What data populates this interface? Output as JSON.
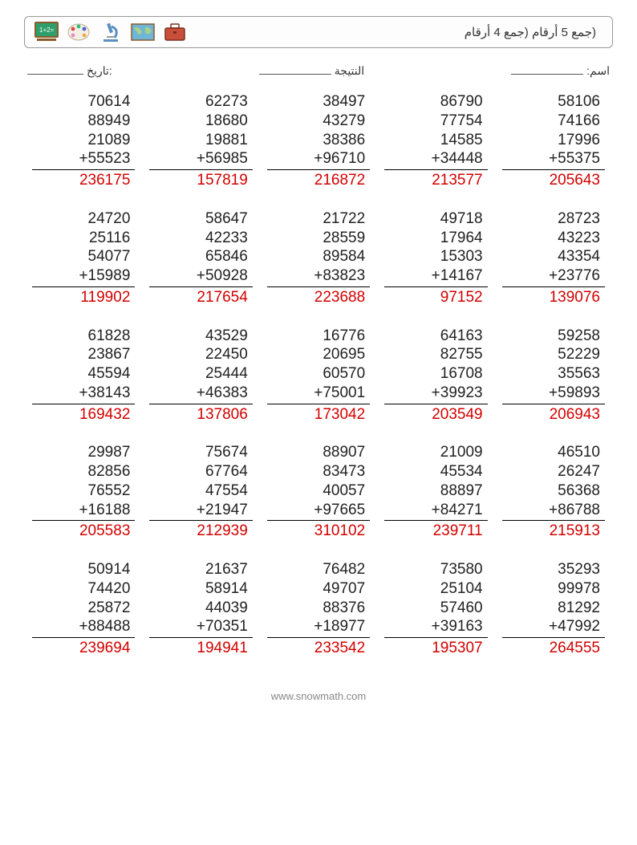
{
  "title": "(جمع 5 أرقام (جمع 4 أرقام",
  "meta": {
    "name_label": "اسم:",
    "score_label": "النتيجة",
    "date_label": ":تاريخ"
  },
  "text_color": "#222222",
  "answer_color": "#d40000",
  "background_color": "#ffffff",
  "font_size": 19,
  "columns": 5,
  "rows": 5,
  "icons": [
    {
      "name": "chalkboard-icon",
      "bg": "#2e9e6b",
      "accent": "#8b5a2b"
    },
    {
      "name": "paint-palette-icon",
      "bg": "#ffffff",
      "accent": "#c94f7c"
    },
    {
      "name": "microscope-icon",
      "bg": "#ffffff",
      "accent": "#5a8fbf"
    },
    {
      "name": "world-map-icon",
      "bg": "#6fb6d6",
      "accent": "#a7d08c"
    },
    {
      "name": "briefcase-icon",
      "bg": "#c94f3a",
      "accent": "#7a2e1e"
    }
  ],
  "meta_line_widths": {
    "name": 90,
    "score": 90,
    "date": 70
  },
  "problems": [
    [
      {
        "addends": [
          70614,
          88949,
          21089,
          55523
        ],
        "answer": 236175
      },
      {
        "addends": [
          62273,
          18680,
          19881,
          56985
        ],
        "answer": 157819
      },
      {
        "addends": [
          38497,
          43279,
          38386,
          96710
        ],
        "answer": 216872
      },
      {
        "addends": [
          86790,
          77754,
          14585,
          34448
        ],
        "answer": 213577
      },
      {
        "addends": [
          58106,
          74166,
          17996,
          55375
        ],
        "answer": 205643
      }
    ],
    [
      {
        "addends": [
          24720,
          25116,
          54077,
          15989
        ],
        "answer": 119902
      },
      {
        "addends": [
          58647,
          42233,
          65846,
          50928
        ],
        "answer": 217654
      },
      {
        "addends": [
          21722,
          28559,
          89584,
          83823
        ],
        "answer": 223688
      },
      {
        "addends": [
          49718,
          17964,
          15303,
          14167
        ],
        "answer": 97152
      },
      {
        "addends": [
          28723,
          43223,
          43354,
          23776
        ],
        "answer": 139076
      }
    ],
    [
      {
        "addends": [
          61828,
          23867,
          45594,
          38143
        ],
        "answer": 169432
      },
      {
        "addends": [
          43529,
          22450,
          25444,
          46383
        ],
        "answer": 137806
      },
      {
        "addends": [
          16776,
          20695,
          60570,
          75001
        ],
        "answer": 173042
      },
      {
        "addends": [
          64163,
          82755,
          16708,
          39923
        ],
        "answer": 203549
      },
      {
        "addends": [
          59258,
          52229,
          35563,
          59893
        ],
        "answer": 206943
      }
    ],
    [
      {
        "addends": [
          29987,
          82856,
          76552,
          16188
        ],
        "answer": 205583
      },
      {
        "addends": [
          75674,
          67764,
          47554,
          21947
        ],
        "answer": 212939
      },
      {
        "addends": [
          88907,
          83473,
          40057,
          97665
        ],
        "answer": 310102
      },
      {
        "addends": [
          21009,
          45534,
          88897,
          84271
        ],
        "answer": 239711
      },
      {
        "addends": [
          46510,
          26247,
          56368,
          86788
        ],
        "answer": 215913
      }
    ],
    [
      {
        "addends": [
          50914,
          74420,
          25872,
          88488
        ],
        "answer": 239694
      },
      {
        "addends": [
          21637,
          58914,
          44039,
          70351
        ],
        "answer": 194941
      },
      {
        "addends": [
          76482,
          49707,
          88376,
          18977
        ],
        "answer": 233542
      },
      {
        "addends": [
          73580,
          25104,
          57460,
          39163
        ],
        "answer": 195307
      },
      {
        "addends": [
          35293,
          99978,
          81292,
          47992
        ],
        "answer": 264555
      }
    ]
  ],
  "footer": "www.snowmath.com"
}
